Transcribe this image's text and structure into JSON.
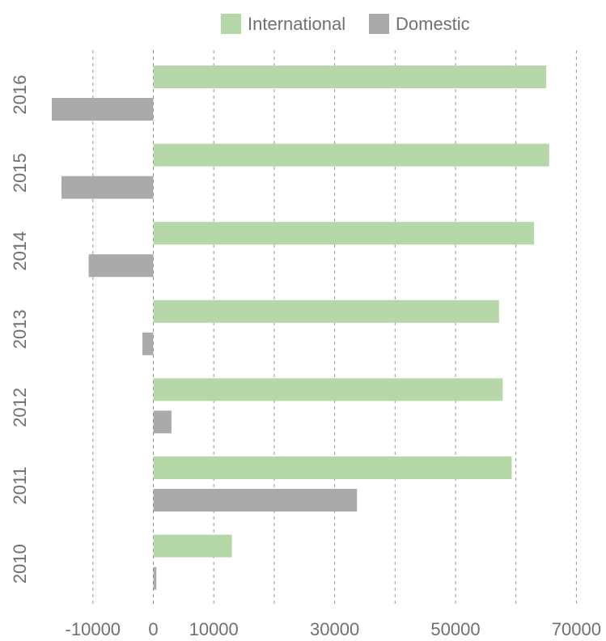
{
  "chart_data": {
    "type": "bar",
    "orientation": "horizontal",
    "title": "",
    "xlabel": "",
    "ylabel": "",
    "categories": [
      "2016",
      "2015",
      "2014",
      "2013",
      "2012",
      "2011",
      "2010"
    ],
    "series": [
      {
        "name": "International",
        "color": "#b6d7a8",
        "values": [
          65000,
          65500,
          63000,
          57200,
          57800,
          59300,
          13000
        ]
      },
      {
        "name": "Domestic",
        "color": "#aaaaaa",
        "values": [
          -16800,
          -15200,
          -10700,
          -1800,
          3000,
          33700,
          500
        ]
      }
    ],
    "xlim": [
      -20000,
      73000
    ],
    "x_ticks": [
      -10000,
      0,
      10000,
      30000,
      50000,
      70000
    ],
    "x_tick_labels": [
      "-10000",
      "0",
      "10000",
      "30000",
      "50000",
      "70000"
    ],
    "gridlines_at": [
      -10000,
      0,
      10000,
      20000,
      30000,
      40000,
      50000,
      60000,
      70000
    ],
    "grid": "vertical dashed",
    "legend": {
      "position": "top-center"
    }
  }
}
